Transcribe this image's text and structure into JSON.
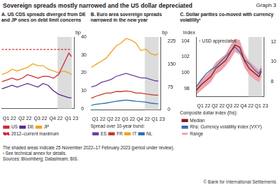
{
  "title": "Sovereign spreads mostly narrowed and the US dollar depreciated",
  "graph_label": "Graph 3",
  "notes": [
    "The shaded areas indicate 25 November 2022–17 February 2023 (period under review).",
    "¹ See technical annex for details.",
    "Sources: Bloomberg; Datastream; BIS."
  ],
  "copyright": "© Bank for International Settlements",
  "chart_data": [
    {
      "type": "line",
      "title": "A. US CDS spreads diverged from DE and JP ones on debt limit concerns",
      "ylabel": "bp",
      "x": [
        0,
        1,
        2,
        3,
        4,
        5,
        6,
        7,
        8,
        9,
        10,
        11,
        12,
        13,
        13.5
      ],
      "xlim": [
        0,
        14
      ],
      "xticks": [
        {
          "value": 1.5,
          "label": "Q1 22"
        },
        {
          "value": 4.5,
          "label": "Q2 22"
        },
        {
          "value": 7.5,
          "label": "Q3 22"
        },
        {
          "value": 10.5,
          "label": "Q4 22"
        },
        {
          "value": 13.5,
          "label": "Q1 23"
        }
      ],
      "ylim": [
        0,
        40
      ],
      "yticks": [
        0,
        10,
        20,
        30,
        40
      ],
      "shaded": [
        10.8,
        13.55
      ],
      "grid": false,
      "legend": "bottom",
      "series": [
        {
          "name": "US",
          "color": "#cc2936",
          "marker": "none",
          "values": [
            15,
            16,
            17,
            16,
            17,
            19,
            18,
            17,
            18,
            18,
            17,
            19,
            25,
            31,
            29
          ]
        },
        {
          "name": "DE",
          "color": "#5b2a86",
          "marker": "none",
          "values": [
            11,
            12,
            13,
            12,
            13,
            14,
            13,
            12,
            14,
            13,
            10,
            8,
            7,
            6,
            6
          ]
        },
        {
          "name": "JP",
          "color": "#f0a31e",
          "marker": "none",
          "values": [
            19,
            20,
            22,
            21,
            22,
            23,
            25,
            24,
            24,
            22,
            21,
            20,
            21,
            20,
            19
          ]
        },
        {
          "name": "2012–current maximum",
          "color": "#cc2936",
          "marker": "none",
          "line_style": "dashed",
          "values": [
            33,
            33,
            33,
            33,
            33,
            33,
            33,
            33,
            33,
            33,
            33,
            33,
            33,
            33,
            33
          ]
        }
      ]
    },
    {
      "type": "line",
      "title": "B. Euro area sovereign spreads narrowed in the new year",
      "ylabel": "bp",
      "x": [
        0,
        1,
        2,
        3,
        4,
        5,
        6,
        7,
        8,
        9,
        10,
        11,
        12,
        13,
        13.5
      ],
      "xlim": [
        0,
        14
      ],
      "xticks": [
        {
          "value": 1.5,
          "label": "Q1 22"
        },
        {
          "value": 4.5,
          "label": "Q2 22"
        },
        {
          "value": 7.5,
          "label": "Q3 22"
        },
        {
          "value": 10.5,
          "label": "Q4 22"
        },
        {
          "value": 13.5,
          "label": "Q1 23"
        }
      ],
      "ylim": [
        0,
        240
      ],
      "yticks": [
        0,
        75,
        150,
        225
      ],
      "shaded": [
        10.8,
        13.55
      ],
      "grid": false,
      "legend": "bottom",
      "legend_title": "Spread over 10-year bund:",
      "series": [
        {
          "name": "ES",
          "color": "#6b3fa0",
          "marker": "none",
          "values": [
            75,
            80,
            90,
            95,
            100,
            110,
            115,
            120,
            115,
            110,
            105,
            105,
            100,
            95,
            95
          ]
        },
        {
          "name": "FR",
          "color": "#c0392b",
          "marker": "none",
          "values": [
            38,
            45,
            50,
            55,
            55,
            60,
            60,
            62,
            60,
            55,
            55,
            52,
            50,
            48,
            48
          ]
        },
        {
          "name": "IT",
          "color": "#f0a020",
          "marker": "none",
          "values": [
            140,
            150,
            160,
            170,
            190,
            210,
            220,
            235,
            230,
            220,
            195,
            200,
            185,
            180,
            185
          ]
        },
        {
          "name": "NL",
          "color": "#2a6fb5",
          "marker": "none",
          "values": [
            15,
            18,
            20,
            22,
            25,
            28,
            30,
            32,
            30,
            28,
            27,
            25,
            22,
            20,
            20
          ]
        }
      ]
    },
    {
      "type": "line",
      "title": "C. Dollar parities co-moved with currency volatility¹",
      "ylabel": "Index",
      "annotation": "↑ USD appreciates",
      "x": [
        0,
        1,
        2,
        3,
        4,
        5,
        6,
        7,
        8,
        9,
        10,
        11,
        12,
        13,
        13.5
      ],
      "xlim": [
        0,
        14
      ],
      "xticks": [
        {
          "value": 1.5,
          "label": "Q1 22"
        },
        {
          "value": 4.5,
          "label": "Q2 22"
        },
        {
          "value": 7.5,
          "label": "Q3 22"
        },
        {
          "value": 10.5,
          "label": "Q4 22"
        },
        {
          "value": 13.5,
          "label": "Q1 23"
        }
      ],
      "ylim": [
        97,
        104.5
      ],
      "yticks": [
        98,
        100,
        102,
        104
      ],
      "y2lim": [
        6.5,
        12.5
      ],
      "y2ticks": [
        8,
        10,
        12
      ],
      "shaded": [
        10.8,
        13.55
      ],
      "grid": false,
      "legend": "bottom",
      "legend_title": "Composite dollar index (lhs):",
      "series": [
        {
          "name": "Median",
          "color": "#8b1a1a",
          "marker": "none",
          "values": [
            97.8,
            98.5,
            99,
            99.5,
            100.5,
            101,
            101.5,
            102.5,
            103.5,
            103.2,
            101.5,
            100.5,
            100,
            99.5,
            100.2
          ]
        },
        {
          "name": "Range",
          "type": "band",
          "color": "#eaa3ad",
          "low": [
            97.2,
            97.8,
            98.3,
            98.8,
            99.8,
            100.2,
            100.8,
            101.6,
            102.6,
            102.3,
            100.6,
            99.7,
            99.2,
            98.8,
            99.5
          ],
          "high": [
            98.4,
            99.2,
            99.7,
            100.3,
            101.3,
            101.8,
            102.3,
            103.4,
            104.3,
            104.1,
            102.4,
            101.4,
            100.9,
            100.3,
            101
          ]
        },
        {
          "name": "Rhs: Currency volatility index (VXY)",
          "color": "#3a6fb0",
          "marker": "none",
          "axis": "y2",
          "values": [
            7.5,
            8.2,
            8.8,
            9.2,
            9.5,
            10,
            10.5,
            11,
            11.5,
            11,
            10.2,
            9.8,
            9.2,
            8.8,
            9.3
          ]
        }
      ]
    }
  ]
}
